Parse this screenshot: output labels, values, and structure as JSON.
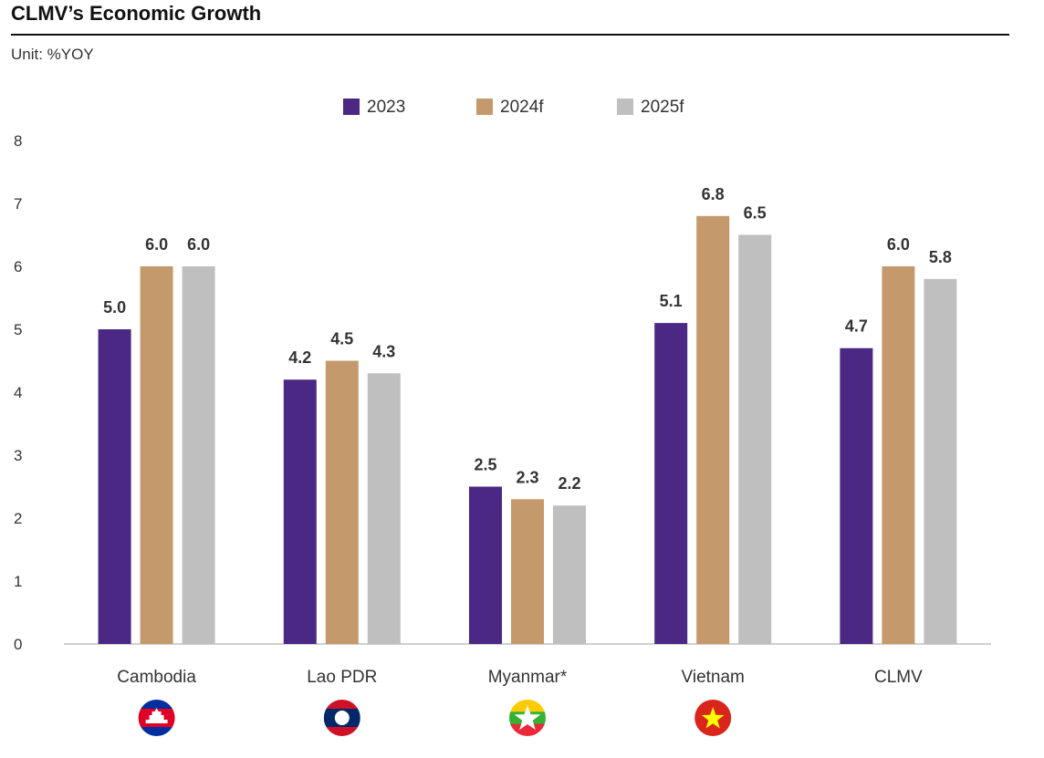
{
  "header": {
    "title": "CLMV’s Economic Growth",
    "unit": "Unit: %YOY"
  },
  "colors": {
    "2023": "#4B2884",
    "2024f": "#C49A6C",
    "2025f": "#BFBFBF"
  },
  "flags": [
    "cambodia-flag-icon",
    "laos-flag-icon",
    "myanmar-flag-icon",
    "vietnam-flag-icon"
  ],
  "chart_data": {
    "type": "bar",
    "categories": [
      "Cambodia",
      "Lao PDR",
      "Myanmar*",
      "Vietnam",
      "CLMV"
    ],
    "series": [
      {
        "name": "2023",
        "values": [
          5.0,
          4.2,
          2.5,
          5.1,
          4.7
        ]
      },
      {
        "name": "2024f",
        "values": [
          6.0,
          4.5,
          2.3,
          6.8,
          6.0
        ]
      },
      {
        "name": "2025f",
        "values": [
          6.0,
          4.3,
          2.2,
          6.5,
          5.8
        ]
      }
    ],
    "data_labels": [
      [
        "5.0",
        "4.2",
        "2.5",
        "5.1",
        "4.7"
      ],
      [
        "6.0",
        "4.5",
        "2.3",
        "6.8",
        "6.0"
      ],
      [
        "6.0",
        "4.3",
        "2.2",
        "6.5",
        "5.8"
      ]
    ],
    "ylim": [
      0,
      8
    ],
    "yticks": [
      "0",
      "1",
      "2",
      "3",
      "4",
      "5",
      "6",
      "7",
      "8"
    ],
    "grid": false,
    "legend_position": "top-center"
  }
}
